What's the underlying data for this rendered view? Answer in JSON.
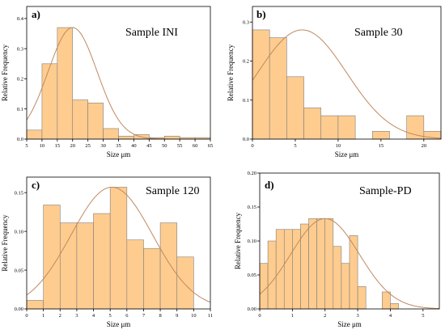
{
  "colors": {
    "bar_fill": "#ffcc8f",
    "bar_stroke": "#7f7f7f",
    "fit_curve": "#c08860",
    "axis": "#000000"
  },
  "chart_data": [
    {
      "type": "bar",
      "panel": "a)",
      "label": "Sample INI",
      "xlabel": "Size μm",
      "ylabel": "Relative Frequency",
      "xlim": [
        5,
        65
      ],
      "ylim": [
        0,
        0.44
      ],
      "xticks": [
        5,
        10,
        15,
        20,
        25,
        30,
        35,
        40,
        45,
        50,
        55,
        60,
        65
      ],
      "yticks": [
        0.0,
        0.1,
        0.2,
        0.3,
        0.4
      ],
      "ytick_labels": [
        "0.0",
        "0.1",
        "0.2",
        "0.3",
        "0.4"
      ],
      "bins": [
        {
          "x0": 5,
          "x1": 10,
          "value": 0.03
        },
        {
          "x0": 10,
          "x1": 15,
          "value": 0.25
        },
        {
          "x0": 15,
          "x1": 20,
          "value": 0.37
        },
        {
          "x0": 20,
          "x1": 25,
          "value": 0.13
        },
        {
          "x0": 25,
          "x1": 30,
          "value": 0.12
        },
        {
          "x0": 30,
          "x1": 35,
          "value": 0.035
        },
        {
          "x0": 35,
          "x1": 40,
          "value": 0.01
        },
        {
          "x0": 40,
          "x1": 45,
          "value": 0.015
        },
        {
          "x0": 45,
          "x1": 50,
          "value": 0.005
        },
        {
          "x0": 50,
          "x1": 55,
          "value": 0.01
        },
        {
          "x0": 55,
          "x1": 60,
          "value": 0.005
        },
        {
          "x0": 60,
          "x1": 65,
          "value": 0.005
        }
      ],
      "fit": {
        "type": "normal",
        "mean": 20,
        "sd": 8,
        "peak": 0.37
      }
    },
    {
      "type": "bar",
      "panel": "b)",
      "label": "Sample 30",
      "xlabel": "Size μm",
      "ylabel": "Relative Frequency",
      "xlim": [
        0,
        22
      ],
      "ylim": [
        0,
        0.34
      ],
      "xticks": [
        0,
        5,
        10,
        15,
        20
      ],
      "yticks": [
        0.0,
        0.1,
        0.2,
        0.3
      ],
      "ytick_labels": [
        "0.0",
        "0.1",
        "0.2",
        "0.3"
      ],
      "bins": [
        {
          "x0": 0,
          "x1": 2,
          "value": 0.28
        },
        {
          "x0": 2,
          "x1": 4,
          "value": 0.26
        },
        {
          "x0": 4,
          "x1": 6,
          "value": 0.16
        },
        {
          "x0": 6,
          "x1": 8,
          "value": 0.08
        },
        {
          "x0": 8,
          "x1": 10,
          "value": 0.06
        },
        {
          "x0": 10,
          "x1": 12,
          "value": 0.06
        },
        {
          "x0": 12,
          "x1": 14,
          "value": 0.0
        },
        {
          "x0": 14,
          "x1": 16,
          "value": 0.02
        },
        {
          "x0": 16,
          "x1": 18,
          "value": 0.0
        },
        {
          "x0": 18,
          "x1": 20,
          "value": 0.06
        },
        {
          "x0": 20,
          "x1": 22,
          "value": 0.02
        }
      ],
      "fit": {
        "type": "normal",
        "mean": 5.8,
        "sd": 5.2,
        "peak": 0.28
      }
    },
    {
      "type": "bar",
      "panel": "c)",
      "label": "Sample 120",
      "xlabel": "Size μm",
      "ylabel": "Relative Frequency",
      "xlim": [
        0,
        11
      ],
      "ylim": [
        0,
        0.17
      ],
      "xticks": [
        0,
        1,
        2,
        3,
        4,
        5,
        6,
        7,
        8,
        9,
        10,
        11
      ],
      "yticks": [
        0.0,
        0.05,
        0.1,
        0.15
      ],
      "ytick_labels": [
        "0.00",
        "0.05",
        "0.10",
        "0.15"
      ],
      "bins": [
        {
          "x0": 0,
          "x1": 1,
          "value": 0.011
        },
        {
          "x0": 1,
          "x1": 2,
          "value": 0.134
        },
        {
          "x0": 2,
          "x1": 3,
          "value": 0.111
        },
        {
          "x0": 3,
          "x1": 4,
          "value": 0.111
        },
        {
          "x0": 4,
          "x1": 5,
          "value": 0.123
        },
        {
          "x0": 5,
          "x1": 6,
          "value": 0.157
        },
        {
          "x0": 6,
          "x1": 7,
          "value": 0.089
        },
        {
          "x0": 7,
          "x1": 8,
          "value": 0.078
        },
        {
          "x0": 8,
          "x1": 9,
          "value": 0.111
        },
        {
          "x0": 9,
          "x1": 10,
          "value": 0.067
        }
      ],
      "fit": {
        "type": "normal",
        "mean": 5.1,
        "sd": 2.45,
        "peak": 0.157
      }
    },
    {
      "type": "bar",
      "panel": "d)",
      "label": "Sample-PD",
      "xlabel": "Size μm",
      "ylabel": "Relative Frequency",
      "xlim": [
        0,
        5.5
      ],
      "ylim": [
        0,
        0.2
      ],
      "xticks": [
        0,
        1,
        2,
        3,
        4,
        5
      ],
      "yticks": [
        0.0,
        0.05,
        0.1,
        0.15,
        0.2
      ],
      "ytick_labels": [
        "0.00",
        "0.05",
        "0.10",
        "0.15",
        "0.20"
      ],
      "bins": [
        {
          "x0": 0,
          "x1": 0.25,
          "value": 0.067
        },
        {
          "x0": 0.25,
          "x1": 0.5,
          "value": 0.1
        },
        {
          "x0": 0.5,
          "x1": 0.75,
          "value": 0.117
        },
        {
          "x0": 0.75,
          "x1": 1.0,
          "value": 0.117
        },
        {
          "x0": 1.0,
          "x1": 1.25,
          "value": 0.117
        },
        {
          "x0": 1.25,
          "x1": 1.5,
          "value": 0.125
        },
        {
          "x0": 1.5,
          "x1": 1.75,
          "value": 0.133
        },
        {
          "x0": 1.75,
          "x1": 2.0,
          "value": 0.133
        },
        {
          "x0": 2.0,
          "x1": 2.25,
          "value": 0.133
        },
        {
          "x0": 2.25,
          "x1": 2.5,
          "value": 0.092
        },
        {
          "x0": 2.5,
          "x1": 2.75,
          "value": 0.067
        },
        {
          "x0": 2.75,
          "x1": 3.0,
          "value": 0.108
        },
        {
          "x0": 3.0,
          "x1": 3.25,
          "value": 0.033
        },
        {
          "x0": 3.25,
          "x1": 3.5,
          "value": 0.0
        },
        {
          "x0": 3.5,
          "x1": 3.75,
          "value": 0.0
        },
        {
          "x0": 3.75,
          "x1": 4.0,
          "value": 0.025
        },
        {
          "x0": 4.0,
          "x1": 4.25,
          "value": 0.008
        }
      ],
      "fit": {
        "type": "normal",
        "mean": 2.0,
        "sd": 1.05,
        "peak": 0.133
      }
    }
  ]
}
